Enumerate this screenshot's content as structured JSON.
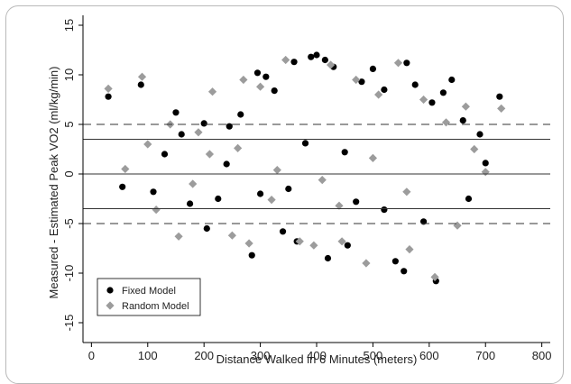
{
  "chart_data": {
    "type": "scatter",
    "title": "",
    "xlabel": "Distance Walked in 6 Minutes (meters)",
    "ylabel": "Measured - Estimated Peak VO2 (ml/kg/min)",
    "xlim": [
      -15,
      815
    ],
    "ylim": [
      -17,
      16
    ],
    "xticks": [
      0,
      100,
      200,
      300,
      400,
      500,
      600,
      700,
      800
    ],
    "yticks": [
      -15,
      -10,
      -5,
      0,
      5,
      10,
      15
    ],
    "grid": false,
    "legend_position": "bottom-left",
    "reference_lines": [
      {
        "y": 0,
        "style": "solid"
      },
      {
        "y": 3.5,
        "style": "solid"
      },
      {
        "y": -3.5,
        "style": "solid"
      },
      {
        "y": 5,
        "style": "dashed"
      },
      {
        "y": -5,
        "style": "dashed"
      }
    ],
    "series": [
      {
        "name": "Fixed Model",
        "marker": "circle",
        "color": "#000000",
        "points": [
          [
            30,
            7.8
          ],
          [
            88,
            9.0
          ],
          [
            55,
            -1.3
          ],
          [
            110,
            -1.8
          ],
          [
            150,
            6.2
          ],
          [
            160,
            4.0
          ],
          [
            175,
            -3.0
          ],
          [
            200,
            5.1
          ],
          [
            205,
            -5.5
          ],
          [
            225,
            -2.5
          ],
          [
            245,
            4.8
          ],
          [
            265,
            6.0
          ],
          [
            285,
            -8.2
          ],
          [
            295,
            10.2
          ],
          [
            310,
            9.8
          ],
          [
            325,
            8.4
          ],
          [
            340,
            -5.8
          ],
          [
            360,
            11.3
          ],
          [
            365,
            -6.8
          ],
          [
            390,
            11.8
          ],
          [
            400,
            12.0
          ],
          [
            415,
            11.5
          ],
          [
            420,
            -8.5
          ],
          [
            430,
            10.8
          ],
          [
            455,
            -7.2
          ],
          [
            480,
            9.3
          ],
          [
            500,
            10.6
          ],
          [
            520,
            8.5
          ],
          [
            540,
            -8.8
          ],
          [
            555,
            -9.8
          ],
          [
            560,
            11.2
          ],
          [
            575,
            9.0
          ],
          [
            590,
            -4.8
          ],
          [
            605,
            7.2
          ],
          [
            612,
            -10.8
          ],
          [
            625,
            8.2
          ],
          [
            640,
            9.5
          ],
          [
            660,
            5.4
          ],
          [
            670,
            -2.5
          ],
          [
            690,
            4.0
          ],
          [
            700,
            1.1
          ],
          [
            725,
            7.8
          ],
          [
            130,
            2.0
          ],
          [
            240,
            1.0
          ],
          [
            350,
            -1.5
          ],
          [
            450,
            2.2
          ],
          [
            470,
            -2.8
          ],
          [
            380,
            3.1
          ],
          [
            300,
            -2.0
          ],
          [
            520,
            -3.6
          ]
        ]
      },
      {
        "name": "Random Model",
        "marker": "diamond",
        "color": "#9c9c9c",
        "points": [
          [
            30,
            8.6
          ],
          [
            90,
            9.8
          ],
          [
            60,
            0.5
          ],
          [
            100,
            3.0
          ],
          [
            115,
            -3.6
          ],
          [
            140,
            5.0
          ],
          [
            155,
            -6.3
          ],
          [
            190,
            4.2
          ],
          [
            215,
            8.3
          ],
          [
            250,
            -6.2
          ],
          [
            270,
            9.5
          ],
          [
            280,
            -7.0
          ],
          [
            300,
            8.8
          ],
          [
            345,
            11.5
          ],
          [
            370,
            -6.8
          ],
          [
            395,
            -7.2
          ],
          [
            425,
            11.0
          ],
          [
            445,
            -6.8
          ],
          [
            470,
            9.5
          ],
          [
            488,
            -9.0
          ],
          [
            510,
            8.0
          ],
          [
            545,
            11.2
          ],
          [
            565,
            -7.6
          ],
          [
            590,
            7.5
          ],
          [
            610,
            -10.4
          ],
          [
            630,
            5.2
          ],
          [
            650,
            -5.2
          ],
          [
            665,
            6.8
          ],
          [
            680,
            2.5
          ],
          [
            700,
            0.2
          ],
          [
            728,
            6.6
          ],
          [
            180,
            -1.0
          ],
          [
            330,
            0.4
          ],
          [
            410,
            -0.6
          ],
          [
            500,
            1.6
          ],
          [
            560,
            -1.8
          ],
          [
            260,
            2.6
          ],
          [
            440,
            -3.2
          ],
          [
            320,
            -2.6
          ],
          [
            210,
            2.0
          ]
        ]
      }
    ]
  }
}
